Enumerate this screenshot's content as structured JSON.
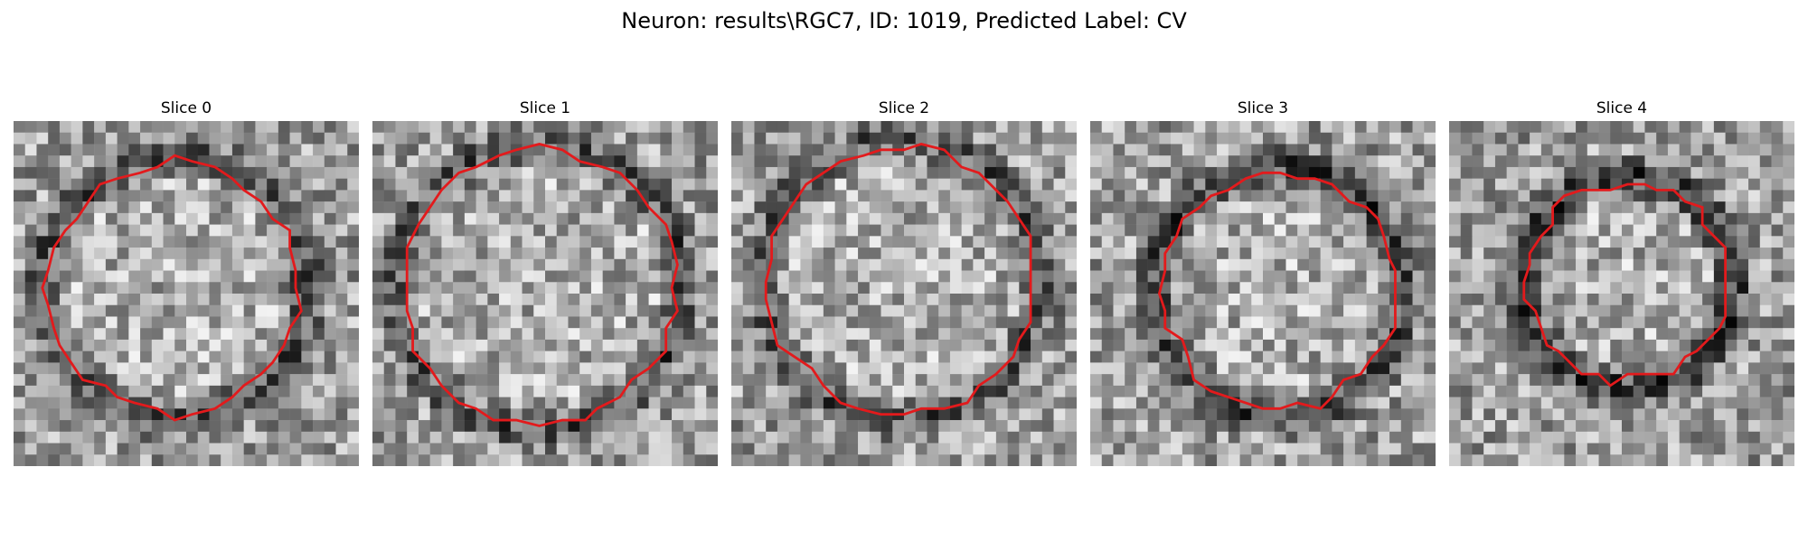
{
  "figure": {
    "title": "Neuron: results\\RGC7, ID: 1019, Predicted Label: CV"
  },
  "colors": {
    "contour": "#e31a1c",
    "background": "#ffffff"
  },
  "slices": [
    {
      "label": "Slice 0"
    },
    {
      "label": "Slice 1"
    },
    {
      "label": "Slice 2"
    },
    {
      "label": "Slice 3"
    },
    {
      "label": "Slice 4"
    }
  ]
}
